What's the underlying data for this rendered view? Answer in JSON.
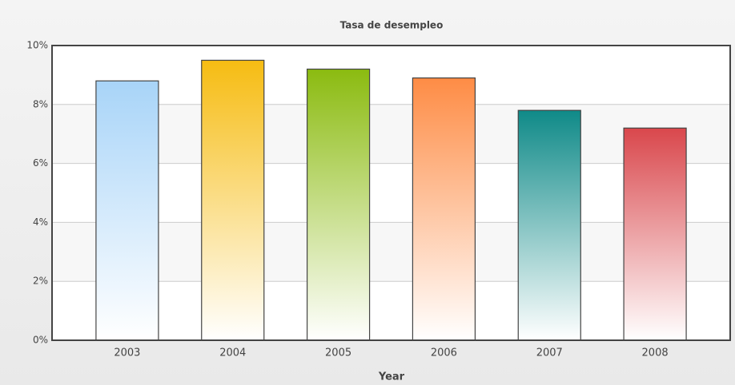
{
  "chart_data": {
    "type": "bar",
    "title": "Tasa de desempleo",
    "x_label": "Year",
    "categories": [
      "2003",
      "2004",
      "2005",
      "2006",
      "2007",
      "2008"
    ],
    "values": [
      8.8,
      9.5,
      9.2,
      8.9,
      7.8,
      7.2
    ],
    "colors": [
      "#a8d4f8",
      "#f6bc12",
      "#8bbb10",
      "#fe8c45",
      "#0f8a88",
      "#d9474c"
    ],
    "ylim": [
      0,
      10
    ],
    "yticks": [
      {
        "value": 0,
        "label": "0%"
      },
      {
        "value": 2,
        "label": "2%"
      },
      {
        "value": 4,
        "label": "4%"
      },
      {
        "value": 6,
        "label": "6%"
      },
      {
        "value": 8,
        "label": "8%"
      },
      {
        "value": 10,
        "label": "10%"
      }
    ],
    "grid": true
  }
}
